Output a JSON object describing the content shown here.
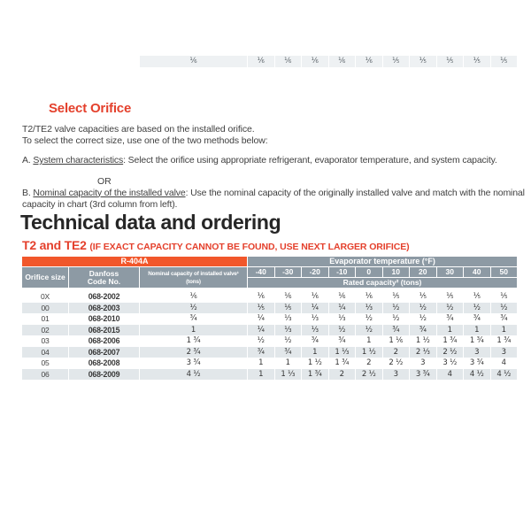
{
  "top_partial_row": {
    "nominal": "⅙",
    "values": [
      "⅙",
      "⅙",
      "⅙",
      "⅙",
      "⅙",
      "⅕",
      "⅕",
      "⅕",
      "⅕",
      "⅕"
    ]
  },
  "select_orifice": {
    "heading": "Select Orifice",
    "para1": "T2/TE2 valve capacities are based on the installed orifice.",
    "para2": "To select the correct size, use one of the two methods below:",
    "method_a_prefix": "A. ",
    "method_a_underlined": "System characteristics",
    "method_a_rest": ": Select the orifice using appropriate refrigerant, evaporator temperature, and system capacity.",
    "or_text": "OR",
    "method_b_prefix": "B. ",
    "method_b_underlined": "Nominal capacity of the installed valve",
    "method_b_rest": ": Use the nominal capacity of the originally installed valve and match with the nominal capacity in chart (3rd column from left)."
  },
  "section_heading": "Technical data and ordering",
  "table_title": "T2 and TE2 ",
  "table_title_note": "(IF EXACT CAPACITY CANNOT BE FOUND, USE NEXT LARGER ORIFICE)",
  "table": {
    "refrigerant": "R-404A",
    "evap_header": "Evaporator temperature (°F)",
    "rated_header": "Rated capacity² (tons)",
    "col_orifice": "Orifice size",
    "col_code_line1": "Danfoss",
    "col_code_line2": "Code No.",
    "col_nominal": "Nominal capacity of installed valve¹ (tons)",
    "temps": [
      "-40",
      "-30",
      "-20",
      "-10",
      "0",
      "10",
      "20",
      "30",
      "40",
      "50"
    ],
    "rows": [
      {
        "orifice": "0X",
        "code": "068-2002",
        "nominal": "⅙",
        "values": [
          "⅙",
          "⅙",
          "⅙",
          "⅙",
          "⅙",
          "⅕",
          "⅕",
          "⅕",
          "⅕",
          "⅕"
        ]
      },
      {
        "orifice": "00",
        "code": "068-2003",
        "nominal": "½",
        "values": [
          "⅕",
          "⅕",
          "¼",
          "¼",
          "⅓",
          "½",
          "½",
          "½",
          "½",
          "½"
        ]
      },
      {
        "orifice": "01",
        "code": "068-2010",
        "nominal": "¾",
        "values": [
          "¼",
          "⅓",
          "⅓",
          "⅓",
          "½",
          "½",
          "½",
          "¾",
          "¾",
          "¾"
        ]
      },
      {
        "orifice": "02",
        "code": "068-2015",
        "nominal": "1",
        "values": [
          "¼",
          "⅓",
          "⅓",
          "½",
          "½",
          "¾",
          "¾",
          "1",
          "1",
          "1"
        ]
      },
      {
        "orifice": "03",
        "code": "068-2006",
        "nominal": "1 ¾",
        "values": [
          "½",
          "½",
          "¾",
          "¾",
          "1",
          "1 ⅙",
          "1 ½",
          "1 ¾",
          "1 ¾",
          "1 ¾"
        ]
      },
      {
        "orifice": "04",
        "code": "068-2007",
        "nominal": "2 ¾",
        "values": [
          "¾",
          "¾",
          "1",
          "1 ⅓",
          "1 ½",
          "2",
          "2 ⅓",
          "2 ½",
          "3",
          "3"
        ]
      },
      {
        "orifice": "05",
        "code": "068-2008",
        "nominal": "3 ¾",
        "values": [
          "1",
          "1",
          "1 ½",
          "1 ¾",
          "2",
          "2 ½",
          "3",
          "3 ½",
          "3 ¾",
          "4"
        ]
      },
      {
        "orifice": "06",
        "code": "068-2009",
        "nominal": "4 ½",
        "values": [
          "1",
          "1 ⅓",
          "1 ¾",
          "2",
          "2 ½",
          "3",
          "3 ¾",
          "4",
          "4 ½",
          "4 ½"
        ]
      }
    ]
  },
  "colors": {
    "accent_orange": "#f1572b",
    "heading_red": "#e4402c",
    "header_gray": "#8d9aa4",
    "row_stripe": "#e2e7ea"
  }
}
